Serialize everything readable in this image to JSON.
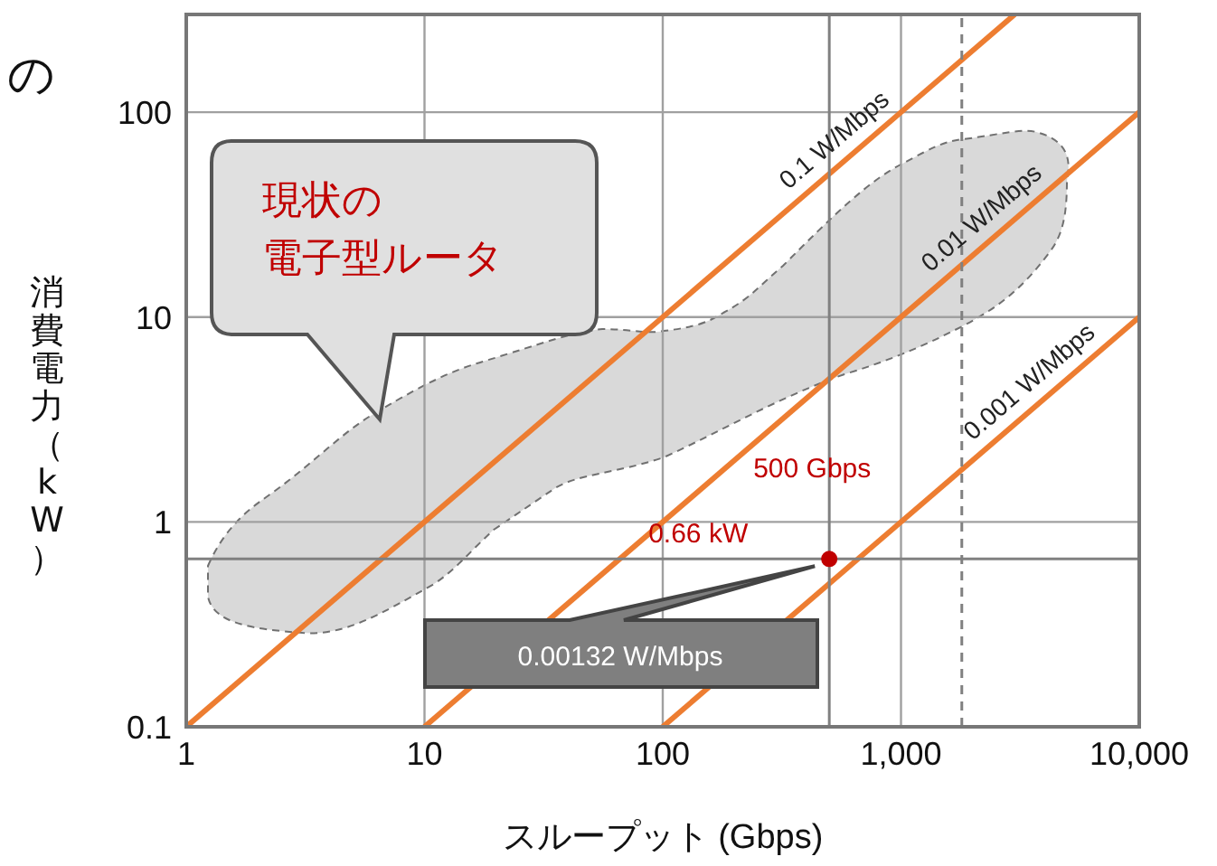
{
  "chart_data": {
    "type": "line",
    "log": "xy",
    "grid": true,
    "legend": false,
    "xlabel": "スループット (Gbps)",
    "ylabel": "消費電力（kW）",
    "xlim": [
      1,
      10000
    ],
    "ylim": [
      0.1,
      300
    ],
    "xticks": [
      1,
      10,
      100,
      {
        "value": 1000,
        "label": "1,000"
      },
      {
        "value": 10000,
        "label": "10,000"
      }
    ],
    "yticks": [
      0.1,
      1,
      10,
      100
    ],
    "series": [
      {
        "type": "line",
        "name": "0.1 W/Mbps",
        "color": "#ed7d31",
        "x": [
          1,
          3000
        ],
        "values": [
          0.1,
          300
        ]
      },
      {
        "type": "line",
        "name": "0.01 W/Mbps",
        "color": "#ed7d31",
        "x": [
          10,
          10000
        ],
        "values": [
          0.1,
          100
        ]
      },
      {
        "type": "line",
        "name": "0.001 W/Mbps",
        "color": "#ed7d31",
        "x": [
          100,
          10000
        ],
        "values": [
          0.1,
          10
        ]
      },
      {
        "type": "scatter",
        "color": "#c00000",
        "x": [
          500
        ],
        "values": [
          0.66
        ]
      }
    ],
    "ref_lines": [
      {
        "axis": "y",
        "value": 0.66,
        "color": "#808080"
      },
      {
        "axis": "x",
        "value": 500,
        "color": "#808080"
      },
      {
        "axis": "x",
        "value": 1800,
        "color": "#808080",
        "line_style": "dashed"
      }
    ],
    "annotations": [
      "現状の電子型ルータ",
      "500 Gbps",
      "0.66 kW",
      "0.00132 W/Mbps",
      "の"
    ]
  }
}
